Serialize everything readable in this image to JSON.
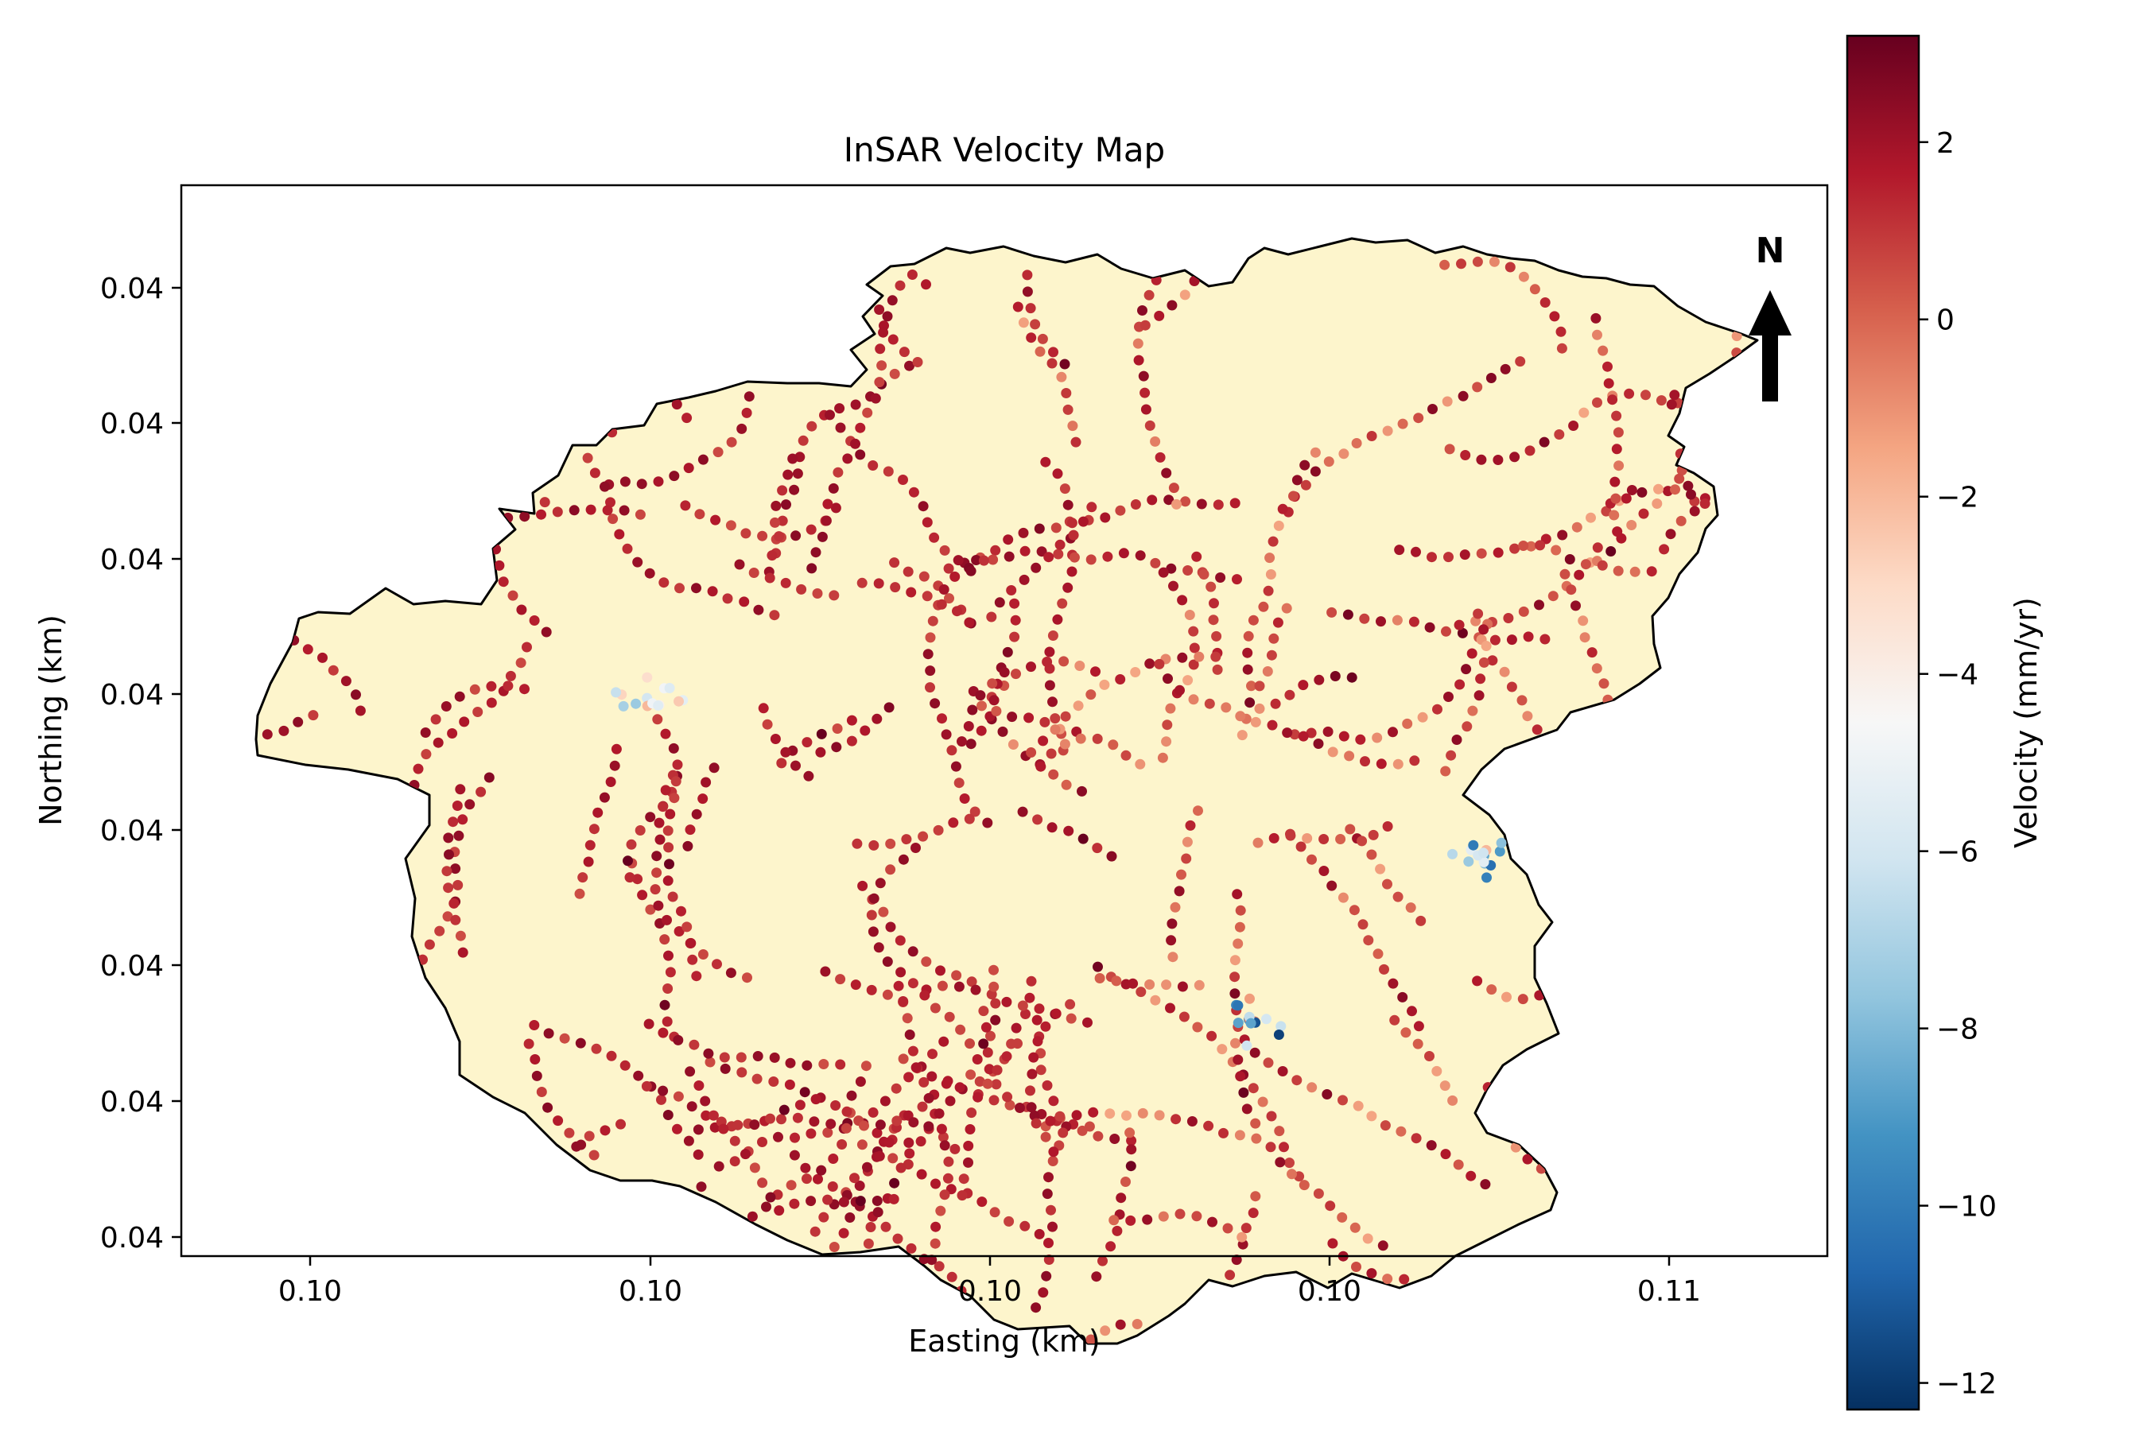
{
  "chart_data": {
    "type": "scatter",
    "title": "InSAR Velocity Map",
    "xlabel": "Easting (km)",
    "ylabel": "Northing (km)",
    "x_tick_labels": [
      "0.10",
      "0.10",
      "0.10",
      "0.10",
      "0.11"
    ],
    "y_tick_labels": [
      "0.04",
      "0.04",
      "0.04",
      "0.04",
      "0.04",
      "0.04",
      "0.04",
      "0.04"
    ],
    "grid": false,
    "colorbar": {
      "label": "Velocity (mm/yr)",
      "colormap": "RdBu_r",
      "range": [
        -12.3,
        3.2
      ],
      "ticks": [
        2,
        0,
        -2,
        -4,
        -6,
        -8,
        -10,
        -12
      ],
      "tick_labels": [
        "2",
        "0",
        "−2",
        "−4",
        "−6",
        "−8",
        "−10",
        "−12"
      ],
      "colors": [
        "#053061",
        "#2166ac",
        "#4393c3",
        "#92c5de",
        "#d1e5f0",
        "#f7f7f7",
        "#fddbc7",
        "#f4a582",
        "#d6604d",
        "#b2182b",
        "#67001f"
      ]
    },
    "north_arrow": {
      "label": "N"
    },
    "region_fill": "#fdf5cc",
    "point_count_visible": "approximately 1500",
    "velocity_summary": {
      "dominant_range": [
        0.5,
        2.5
      ],
      "typical_value": 1.5,
      "minimum_observed": -12.3,
      "maximum_observed": 3.2,
      "subsidence_clusters": [
        {
          "location": "east-central",
          "min_velocity": -10.5
        },
        {
          "location": "south-central",
          "min_velocity": -12.3
        },
        {
          "location": "west-central",
          "min_velocity": -7.5
        }
      ]
    }
  }
}
